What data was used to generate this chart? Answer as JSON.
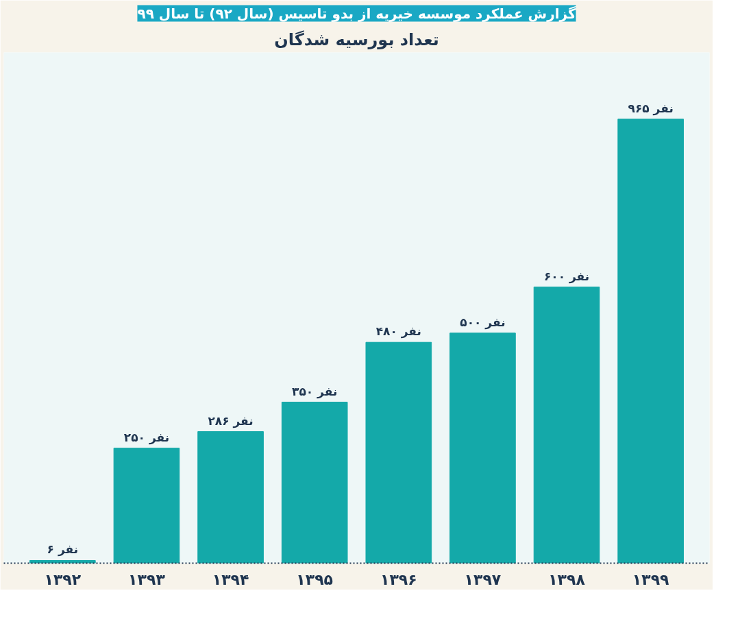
{
  "chart_data": {
    "type": "bar",
    "title": "گزارش عملکرد موسسه خیریه از بدو تاسیس (سال ۹۲) تا سال ۹۹",
    "subtitle": "تعداد بورسیه شدگان",
    "categories": [
      "۱۳۹۲",
      "۱۳۹۳",
      "۱۳۹۴",
      "۱۳۹۵",
      "۱۳۹۶",
      "۱۳۹۷",
      "۱۳۹۸",
      "۱۳۹۹"
    ],
    "values": [
      6,
      250,
      286,
      350,
      480,
      500,
      600,
      965
    ],
    "value_labels": [
      "۶ نفر",
      "۲۵۰ نفر",
      "۲۸۶ نفر",
      "۳۵۰ نفر",
      "۴۸۰ نفر",
      "۵۰۰ نفر",
      "۶۰۰ نفر",
      "۹۶۵ نفر"
    ],
    "color": "#14a9a9",
    "grid": false
  }
}
